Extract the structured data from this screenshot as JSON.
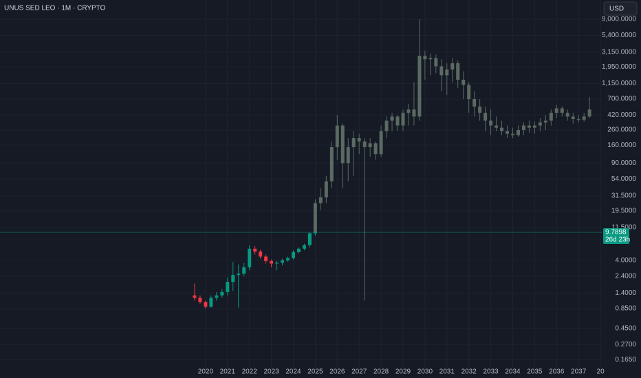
{
  "chart_data": {
    "type": "candlestick",
    "title": "UNUS SED LEO · 1M · CRYPTO",
    "currency": "USD",
    "log_scale": true,
    "grid": true,
    "xlim": [
      2010.63,
      2038.06
    ],
    "xticks": [
      2020,
      2021,
      2022,
      2023,
      2024,
      2025,
      2026,
      2027,
      2028,
      2029,
      2030,
      2031,
      2032,
      2033,
      2034,
      2035,
      2036,
      2037,
      {
        "value": 2038,
        "label": "20"
      }
    ],
    "ylim": [
      0.12,
      16700
    ],
    "yticks": [
      {
        "value": 9000,
        "label": "9,000.0000"
      },
      {
        "value": 5400,
        "label": "5,400.0000"
      },
      {
        "value": 3150,
        "label": "3,150.0000"
      },
      {
        "value": 1950,
        "label": "1,950.0000"
      },
      {
        "value": 1150,
        "label": "1,150.0000"
      },
      {
        "value": 700,
        "label": "700.0000"
      },
      {
        "value": 420,
        "label": "420.0000"
      },
      {
        "value": 260,
        "label": "260.0000"
      },
      {
        "value": 160,
        "label": "160.0000"
      },
      {
        "value": 90,
        "label": "90.0000"
      },
      {
        "value": 54,
        "label": "54.0000"
      },
      {
        "value": 31.5,
        "label": "31.5000"
      },
      {
        "value": 19.5,
        "label": "19.5000"
      },
      {
        "value": 11.5,
        "label": "11.5000"
      },
      {
        "value": 4,
        "label": "4.0000"
      },
      {
        "value": 2.4,
        "label": "2.4000"
      },
      {
        "value": 1.4,
        "label": "1.4000"
      },
      {
        "value": 0.85,
        "label": "0.8500"
      },
      {
        "value": 0.45,
        "label": "0.4500"
      },
      {
        "value": 0.27,
        "label": "0.2700"
      },
      {
        "value": 0.165,
        "label": "0.1650"
      }
    ],
    "last_price": 9.7898,
    "last_price_label": "9.7898",
    "countdown": "26d 23h",
    "last_price_color": "#089981",
    "candles": {
      "up_color": "#089981",
      "down_color": "#f23645",
      "x": [
        2019.5,
        2019.75,
        2020.0,
        2020.25,
        2020.5,
        2020.75,
        2021.0,
        2021.25,
        2021.5,
        2021.75,
        2022.0,
        2022.25,
        2022.5,
        2022.75,
        2023.0,
        2023.25,
        2023.5,
        2023.75,
        2024.0,
        2024.25,
        2024.5,
        2024.75,
        2025.0
      ],
      "open": [
        1.3,
        1.2,
        1.05,
        0.9,
        1.2,
        1.3,
        1.45,
        2.0,
        2.5,
        2.6,
        3.2,
        5.8,
        5.3,
        4.5,
        3.9,
        3.6,
        3.7,
        4.0,
        4.3,
        5.2,
        5.8,
        6.5,
        9.5
      ],
      "high": [
        1.9,
        1.3,
        1.1,
        1.3,
        1.45,
        1.6,
        2.3,
        3.8,
        3.5,
        3.7,
        6.5,
        6.3,
        5.6,
        4.8,
        4.1,
        3.9,
        4.2,
        4.5,
        5.5,
        6.0,
        6.8,
        9.8,
        10.0
      ],
      "low": [
        1.1,
        1.0,
        0.85,
        0.88,
        1.1,
        1.2,
        1.3,
        1.5,
        0.88,
        2.4,
        2.9,
        4.8,
        4.2,
        3.6,
        3.2,
        2.9,
        3.4,
        3.8,
        4.1,
        5.0,
        5.5,
        6.0,
        8.8
      ],
      "close": [
        1.2,
        1.05,
        0.9,
        1.2,
        1.3,
        1.45,
        2.0,
        2.5,
        2.6,
        3.2,
        5.8,
        5.3,
        4.5,
        3.9,
        3.6,
        3.7,
        4.0,
        4.3,
        5.2,
        5.8,
        6.5,
        9.5,
        9.79
      ]
    },
    "projection": {
      "color": "#5b6a62",
      "x": [
        2025.0,
        2025.25,
        2025.5,
        2025.75,
        2026.0,
        2026.25,
        2026.5,
        2026.75,
        2027.0,
        2027.25,
        2027.5,
        2027.75,
        2028.0,
        2028.25,
        2028.5,
        2028.75,
        2029.0,
        2029.25,
        2029.5,
        2029.75,
        2030.0,
        2030.25,
        2030.5,
        2030.75,
        2031.0,
        2031.25,
        2031.5,
        2031.75,
        2032.0,
        2032.25,
        2032.5,
        2032.75,
        2033.0,
        2033.25,
        2033.5,
        2033.75,
        2034.0,
        2034.25,
        2034.5,
        2034.75,
        2035.0,
        2035.25,
        2035.5,
        2035.75,
        2036.0,
        2036.25,
        2036.5,
        2036.75,
        2037.0,
        2037.25,
        2037.5
      ],
      "open": [
        9.8,
        25,
        30,
        50,
        150,
        300,
        90,
        150,
        200,
        180,
        150,
        170,
        120,
        250,
        350,
        400,
        300,
        450,
        500,
        400,
        2800,
        2500,
        2600,
        2000,
        1500,
        1800,
        2200,
        1300,
        1100,
        700,
        550,
        450,
        350,
        300,
        280,
        250,
        230,
        220,
        260,
        300,
        280,
        300,
        330,
        350,
        450,
        520,
        450,
        400,
        370,
        360,
        400
      ],
      "high": [
        28,
        40,
        60,
        180,
        420,
        320,
        200,
        250,
        230,
        200,
        200,
        180,
        300,
        400,
        450,
        420,
        500,
        600,
        1200,
        9000,
        3300,
        3000,
        2900,
        2500,
        2200,
        2600,
        2400,
        1700,
        1200,
        900,
        700,
        550,
        500,
        400,
        350,
        300,
        280,
        300,
        330,
        350,
        340,
        380,
        420,
        500,
        580,
        560,
        500,
        450,
        420,
        450,
        750
      ],
      "low": [
        9,
        20,
        25,
        40,
        100,
        40,
        50,
        60,
        120,
        1.1,
        110,
        100,
        110,
        200,
        250,
        250,
        250,
        300,
        300,
        350,
        1300,
        1500,
        1600,
        900,
        800,
        1200,
        1000,
        700,
        450,
        400,
        350,
        250,
        220,
        250,
        220,
        200,
        200,
        210,
        220,
        240,
        230,
        250,
        260,
        300,
        380,
        400,
        350,
        320,
        330,
        340,
        380
      ],
      "close": [
        25,
        30,
        50,
        150,
        300,
        90,
        150,
        200,
        180,
        150,
        170,
        120,
        250,
        350,
        400,
        300,
        450,
        500,
        400,
        2800,
        2500,
        2600,
        2000,
        1500,
        1800,
        2200,
        1300,
        1100,
        700,
        550,
        450,
        350,
        300,
        280,
        250,
        230,
        220,
        260,
        300,
        280,
        300,
        330,
        350,
        450,
        520,
        450,
        400,
        370,
        360,
        400,
        500
      ]
    }
  }
}
